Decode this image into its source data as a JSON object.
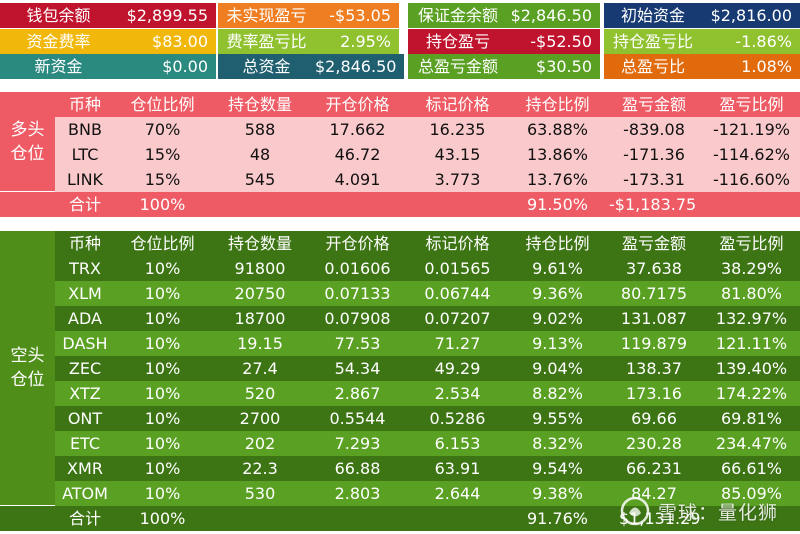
{
  "summary": {
    "row1": [
      {
        "label": "钱包余额",
        "value": "$2,899.55"
      },
      {
        "label": "未实现盈亏",
        "value": "-$53.05"
      },
      {
        "label": "保证金余额",
        "value": "$2,846.50"
      },
      {
        "label": "初始资金",
        "value": "$2,816.00"
      }
    ],
    "row2": [
      {
        "label": "资金费率",
        "value": "$83.00"
      },
      {
        "label": "费率盈亏比",
        "value": "2.95%"
      },
      {
        "label": "持仓盈亏",
        "value": "-$52.50"
      },
      {
        "label": "持仓盈亏比",
        "value": "-1.86%"
      }
    ],
    "row3": [
      {
        "label": "新资金",
        "value": "$0.00"
      },
      {
        "label": "总资金",
        "value": "$2,846.50"
      },
      {
        "label": "总盈亏金额",
        "value": "$30.50"
      },
      {
        "label": "总盈亏比",
        "value": "1.08%"
      }
    ]
  },
  "columns": [
    "币种",
    "仓位比例",
    "持仓数量",
    "开仓价格",
    "标记价格",
    "持仓比例",
    "盈亏金额",
    "盈亏比例"
  ],
  "long": {
    "label": "多头\n仓位",
    "rows": [
      [
        "BNB",
        "70%",
        "588",
        "17.662",
        "16.235",
        "63.88%",
        "-839.08",
        "-121.19%"
      ],
      [
        "LTC",
        "15%",
        "48",
        "46.72",
        "43.15",
        "13.86%",
        "-171.36",
        "-114.62%"
      ],
      [
        "LINK",
        "15%",
        "545",
        "4.091",
        "3.773",
        "13.76%",
        "-173.31",
        "-116.60%"
      ]
    ],
    "total": [
      "合计",
      "100%",
      "",
      "",
      "",
      "91.50%",
      "-$1,183.75",
      ""
    ]
  },
  "short": {
    "label": "空头\n仓位",
    "rows": [
      [
        "TRX",
        "10%",
        "91800",
        "0.01606",
        "0.01565",
        "9.61%",
        "37.638",
        "38.29%"
      ],
      [
        "XLM",
        "10%",
        "20750",
        "0.07133",
        "0.06744",
        "9.36%",
        "80.7175",
        "81.80%"
      ],
      [
        "ADA",
        "10%",
        "18700",
        "0.07908",
        "0.07207",
        "9.02%",
        "131.087",
        "132.97%"
      ],
      [
        "DASH",
        "10%",
        "19.15",
        "77.53",
        "71.27",
        "9.13%",
        "119.879",
        "121.11%"
      ],
      [
        "ZEC",
        "10%",
        "27.4",
        "54.34",
        "49.29",
        "9.04%",
        "138.37",
        "139.40%"
      ],
      [
        "XTZ",
        "10%",
        "520",
        "2.867",
        "2.534",
        "8.82%",
        "173.16",
        "174.22%"
      ],
      [
        "ONT",
        "10%",
        "2700",
        "0.5544",
        "0.5286",
        "9.55%",
        "69.66",
        "69.81%"
      ],
      [
        "ETC",
        "10%",
        "202",
        "7.293",
        "6.153",
        "8.32%",
        "230.28",
        "234.47%"
      ],
      [
        "XMR",
        "10%",
        "22.3",
        "66.88",
        "63.91",
        "9.54%",
        "66.231",
        "66.61%"
      ],
      [
        "ATOM",
        "10%",
        "530",
        "2.803",
        "2.644",
        "9.38%",
        "84.27",
        "85.09%"
      ]
    ],
    "total": [
      "合计",
      "100%",
      "",
      "",
      "",
      "91.76%",
      "$1,131.29",
      ""
    ]
  },
  "watermark": "雪球：量化狮",
  "colors": {
    "long_header": "#ef5b64",
    "long_row": "#f9c9cb",
    "short_dark": "#3d7514",
    "short_light": "#5aa123"
  }
}
